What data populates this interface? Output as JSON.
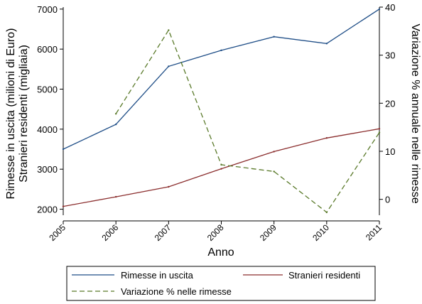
{
  "chart_data": {
    "type": "line",
    "xlabel": "Anno",
    "ylabel_left_line1": "Rimesse in uscita (milioni di Euro)",
    "ylabel_left_line2": "Stranieri residenti (migliaia)",
    "ylabel_right": "Variazione % annuale nelle rimesse",
    "x": [
      2005,
      2006,
      2007,
      2008,
      2009,
      2010,
      2011
    ],
    "ylim_left": [
      1850,
      7050
    ],
    "ylim_right": [
      -3.3,
      40.0
    ],
    "yticks_left": [
      2000,
      3000,
      4000,
      5000,
      6000,
      7000
    ],
    "yticks_right": [
      0,
      10,
      20,
      30,
      40
    ],
    "grid": false,
    "legend_position": "bottom",
    "series": [
      {
        "name": "Rimesse in uscita",
        "axis": "left",
        "color": "#1f4e87",
        "dash": "solid",
        "values": [
          3500,
          4120,
          5570,
          5970,
          6310,
          6140,
          7000
        ]
      },
      {
        "name": "Stranieri residenti",
        "axis": "left",
        "color": "#8b2e2e",
        "dash": "solid",
        "values": [
          2070,
          2310,
          2560,
          3010,
          3440,
          3780,
          4010
        ]
      },
      {
        "name": "Variazione % nelle rimesse",
        "axis": "right",
        "color": "#5a7a2a",
        "dash": "dashed",
        "values": [
          null,
          17.8,
          35.2,
          7.2,
          5.8,
          -2.7,
          13.9
        ]
      }
    ]
  }
}
